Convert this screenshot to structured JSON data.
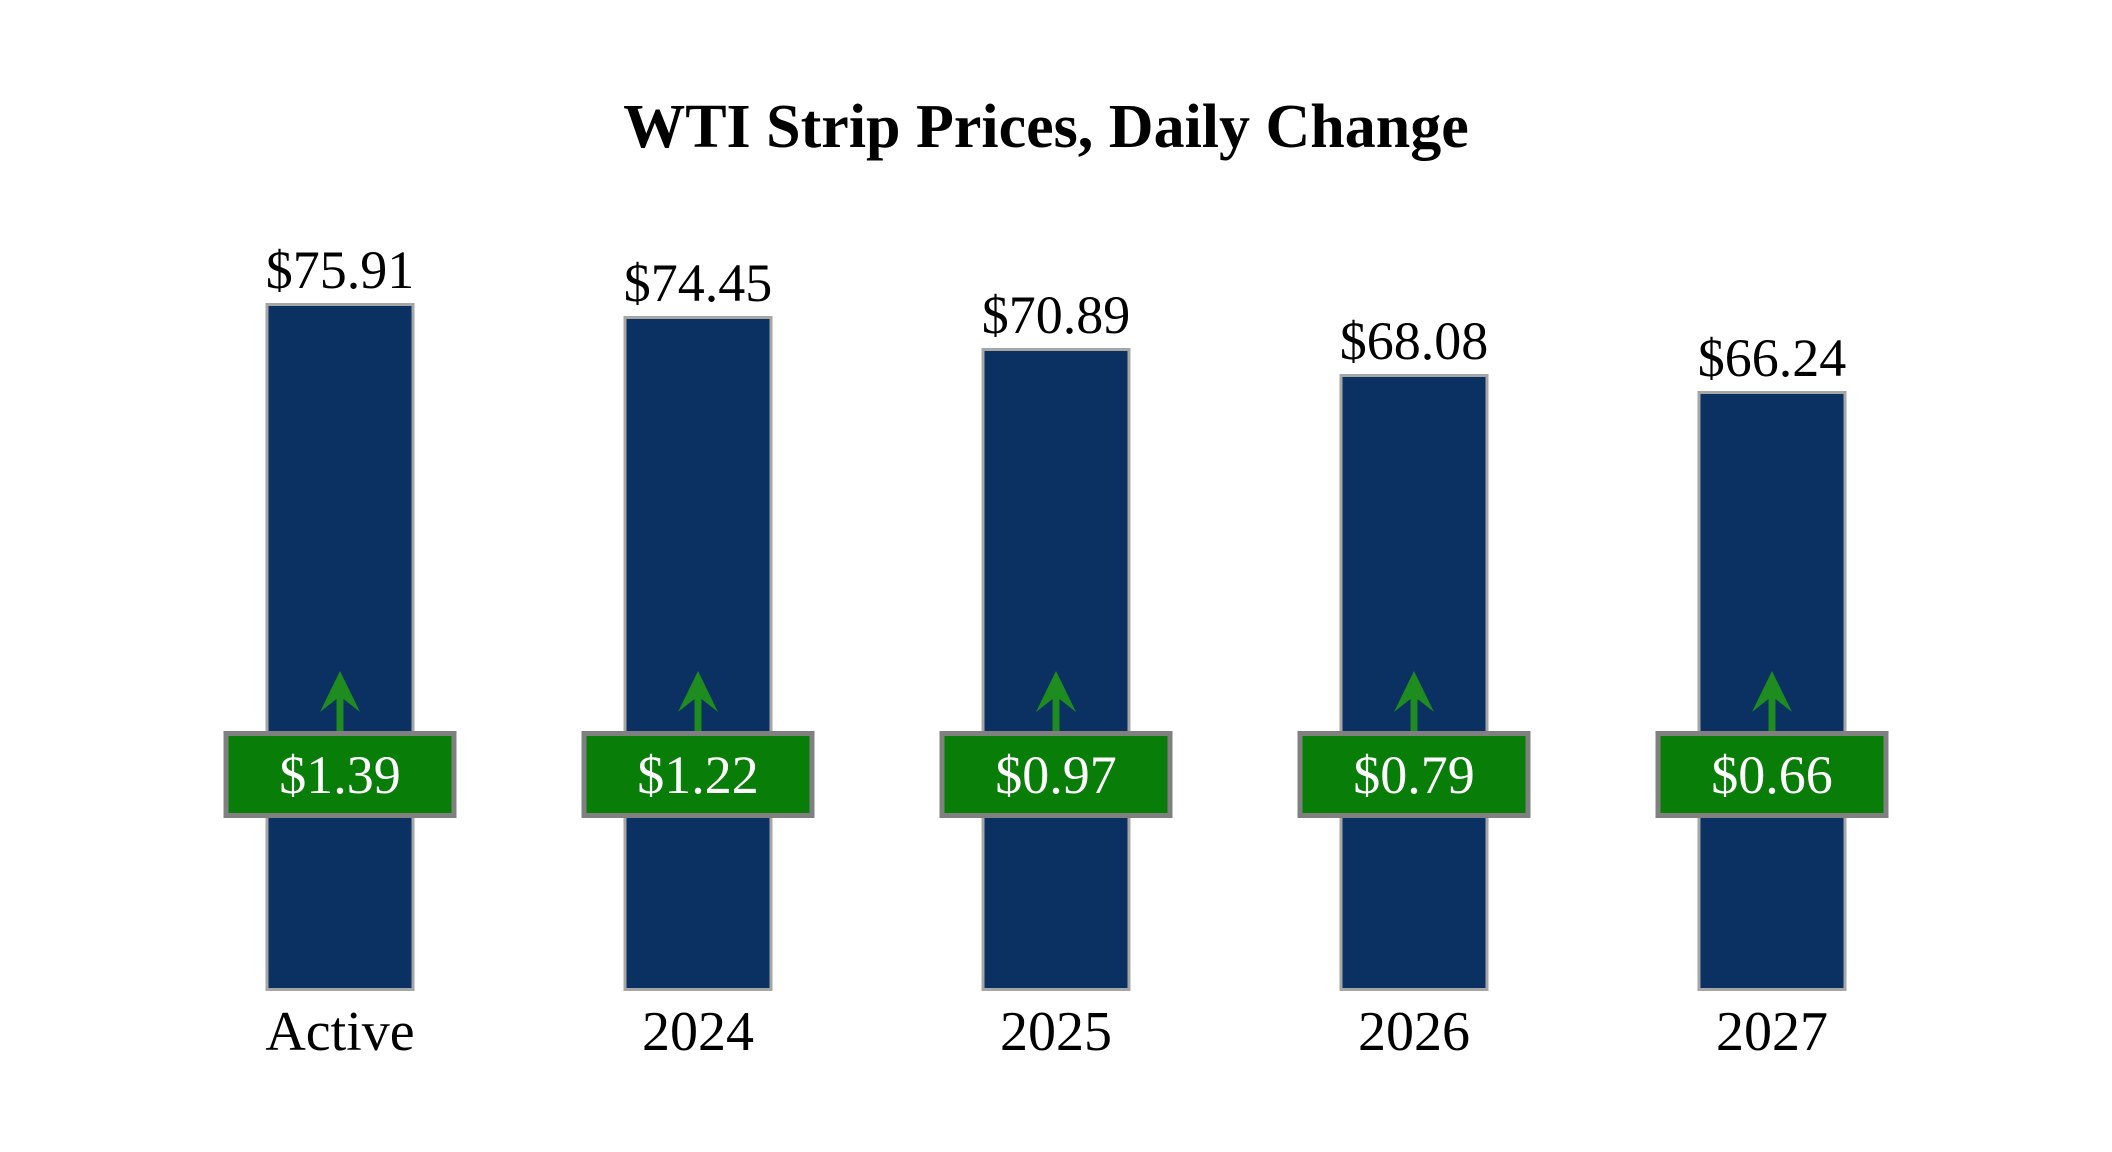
{
  "title": {
    "text": "WTI Strip Prices, Daily Change"
  },
  "colors": {
    "bar_fill": "#0a3161",
    "bar_border": "#a6a6a6",
    "badge_fill": "#087d08",
    "badge_border": "#808080",
    "arrow_fill": "#1e8c1e",
    "badge_text": "#ffffff",
    "text": "#000000",
    "background": "#ffffff"
  },
  "chart_data": {
    "type": "bar",
    "title": "WTI Strip Prices, Daily Change",
    "xlabel": "",
    "ylabel": "",
    "categories": [
      "Active",
      "2024",
      "2025",
      "2026",
      "2027"
    ],
    "series": [
      {
        "name": "WTI strip price",
        "unit": "$ per bbl",
        "values": [
          75.91,
          74.45,
          70.89,
          68.08,
          66.24
        ],
        "labels": [
          "$75.91",
          "$74.45",
          "$70.89",
          "$68.08",
          "$66.24"
        ],
        "color": "#0a3161"
      },
      {
        "name": "Daily change",
        "unit": "$ per bbl",
        "direction": "up",
        "values": [
          1.39,
          1.22,
          0.97,
          0.79,
          0.66
        ],
        "labels": [
          "$1.39",
          "$1.22",
          "$0.97",
          "$0.79",
          "$0.66"
        ],
        "color": "#087d08"
      }
    ],
    "ylim": [
      0,
      80
    ],
    "grid": false,
    "legend": "none",
    "annotations": "each bar carries a green badge with an up arrow showing the daily price change"
  }
}
